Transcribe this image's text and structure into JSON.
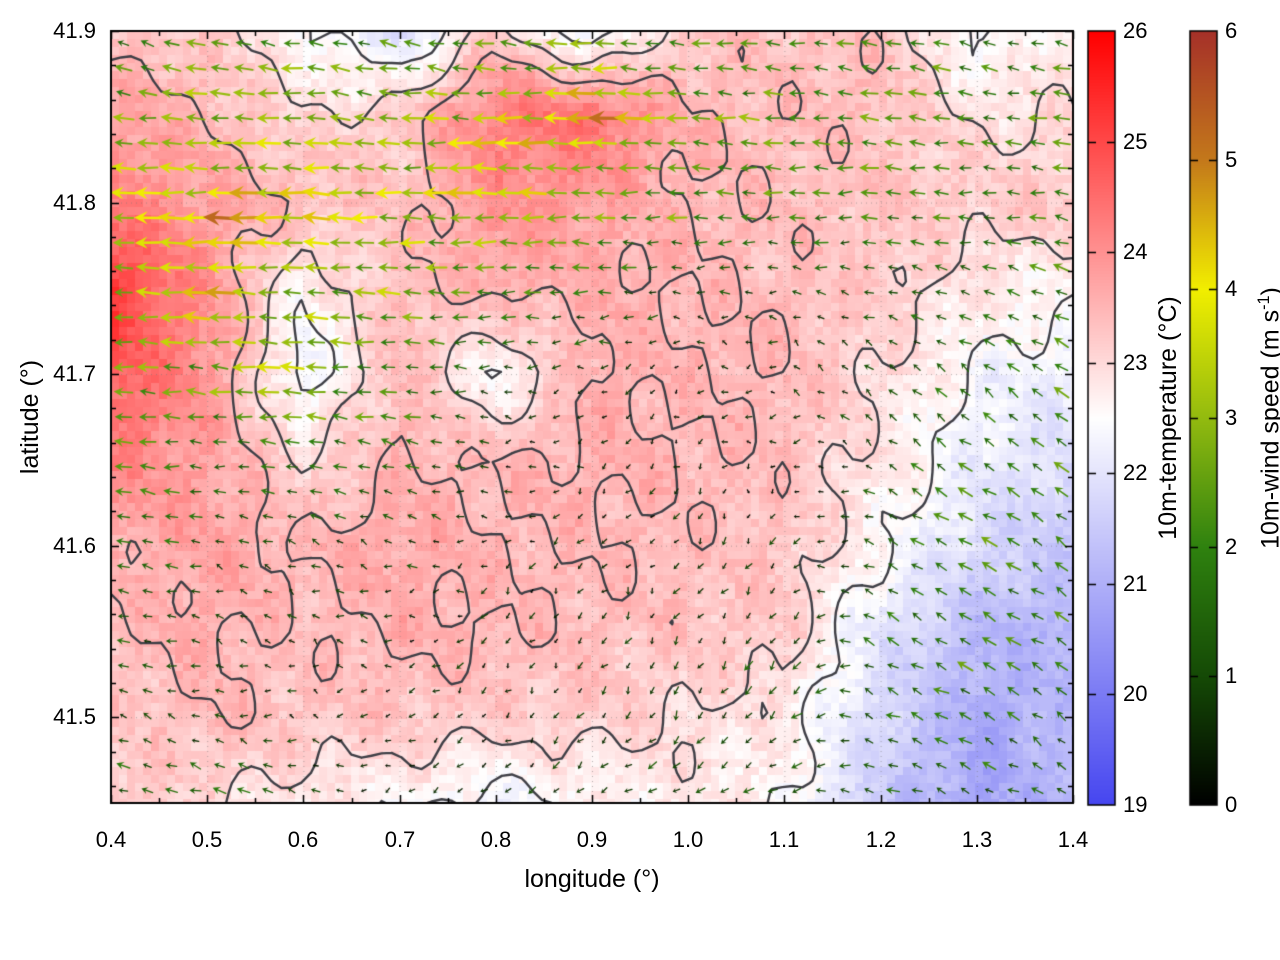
{
  "chart_data": {
    "type": "heatmap",
    "overlays": [
      "quiver",
      "contour"
    ],
    "title": "",
    "xlabel": "longitude (°)",
    "ylabel": "latitude (°)",
    "xlim": [
      0.4,
      1.4
    ],
    "ylim": [
      41.45,
      41.9
    ],
    "x_tick_labels": [
      "0.4",
      "0.5",
      "0.6",
      "0.7",
      "0.8",
      "0.9",
      "1.0",
      "1.1",
      "1.2",
      "1.3",
      "1.4"
    ],
    "y_tick_labels": [
      "41.5",
      "41.6",
      "41.7",
      "41.8",
      "41.9"
    ],
    "x_minor_step": 0.05,
    "y_minor_step": 0.02,
    "grid_style": "dotted-at-major-ticks",
    "field_grid": {
      "lon": [
        0.4,
        0.5,
        0.6,
        0.7,
        0.8,
        0.9,
        1.0,
        1.1,
        1.2,
        1.3,
        1.4
      ],
      "lat": [
        41.9,
        41.85,
        41.8,
        41.75,
        41.7,
        41.65,
        41.6,
        41.55,
        41.5,
        41.45
      ]
    },
    "temperature_c": [
      [
        23.3,
        23.2,
        22.6,
        21.9,
        23.2,
        22.1,
        23.3,
        23.3,
        23.4,
        22.4,
        22.8
      ],
      [
        23.8,
        23.5,
        23.0,
        23.2,
        24.3,
        24.5,
        23.5,
        23.4,
        23.4,
        22.9,
        23.0
      ],
      [
        24.3,
        23.8,
        23.4,
        23.3,
        24.0,
        23.8,
        23.5,
        23.4,
        23.3,
        23.2,
        23.3
      ],
      [
        25.3,
        24.0,
        22.6,
        23.4,
        23.6,
        23.6,
        23.5,
        23.4,
        23.2,
        22.8,
        22.6
      ],
      [
        24.8,
        24.0,
        22.2,
        23.5,
        22.4,
        23.6,
        23.5,
        23.5,
        23.0,
        22.4,
        22.2
      ],
      [
        24.2,
        23.8,
        23.0,
        23.5,
        23.5,
        23.6,
        23.5,
        23.4,
        22.8,
        22.2,
        21.8
      ],
      [
        23.6,
        23.8,
        23.5,
        23.7,
        23.5,
        23.5,
        23.4,
        23.3,
        22.6,
        21.8,
        21.5
      ],
      [
        23.4,
        23.6,
        23.4,
        23.6,
        23.5,
        23.4,
        23.3,
        23.2,
        22.0,
        21.2,
        21.0
      ],
      [
        23.2,
        23.5,
        23.3,
        23.3,
        23.2,
        23.2,
        23.0,
        22.8,
        21.8,
        20.9,
        21.2
      ],
      [
        23.3,
        23.0,
        22.8,
        22.6,
        22.3,
        22.6,
        22.8,
        22.6,
        21.5,
        20.8,
        21.2
      ]
    ],
    "wind_u_ms": [
      [
        -1.5,
        -2.0,
        -2.0,
        -2.0,
        -1.8,
        -2.2,
        -2.0,
        -2.0,
        -2.0,
        -1.8,
        -1.5
      ],
      [
        -2.5,
        -3.0,
        -2.5,
        -2.5,
        -3.5,
        -4.0,
        -2.5,
        -2.2,
        -2.2,
        -2.0,
        -2.0
      ],
      [
        -3.5,
        -3.8,
        -3.5,
        -3.0,
        -3.5,
        -2.5,
        -2.2,
        -2.0,
        -2.0,
        -1.8,
        -2.0
      ],
      [
        -3.0,
        -3.5,
        -3.0,
        -2.5,
        -2.0,
        -1.5,
        -1.0,
        -0.8,
        -1.0,
        -1.5,
        -1.8
      ],
      [
        -2.5,
        -2.5,
        -2.8,
        -2.0,
        -1.0,
        -0.5,
        -0.3,
        -0.5,
        -0.7,
        -1.2,
        -1.5
      ],
      [
        -2.0,
        -1.5,
        -2.0,
        -1.5,
        -0.5,
        -0.3,
        -0.2,
        -0.3,
        -0.8,
        -1.5,
        -1.8
      ],
      [
        -1.8,
        -1.0,
        -0.8,
        -0.8,
        -0.4,
        -0.3,
        -0.3,
        -0.4,
        -1.2,
        -1.8,
        -1.5
      ],
      [
        -1.2,
        -0.8,
        -0.5,
        -0.5,
        -0.3,
        -0.3,
        -0.4,
        -0.5,
        -1.5,
        -1.8,
        -1.5
      ],
      [
        -1.0,
        -0.6,
        -0.5,
        -0.3,
        -0.3,
        -0.4,
        -0.5,
        -0.8,
        -1.2,
        -1.5,
        -1.2
      ],
      [
        -1.5,
        -2.0,
        -0.8,
        -0.5,
        -0.5,
        -0.8,
        -0.8,
        -1.0,
        -1.2,
        -1.2,
        -1.0
      ]
    ],
    "wind_v_ms": [
      [
        0.8,
        0.5,
        0.3,
        0.5,
        0.3,
        0.2,
        0.3,
        0.2,
        0.3,
        0.5,
        0.3
      ],
      [
        0.3,
        0.2,
        0.2,
        0.2,
        0.0,
        0.0,
        0.2,
        0.2,
        0.2,
        0.3,
        0.3
      ],
      [
        0.0,
        0.0,
        0.2,
        0.0,
        0.0,
        0.0,
        0.0,
        0.0,
        0.0,
        0.0,
        0.3
      ],
      [
        0.3,
        0.0,
        0.3,
        0.3,
        0.0,
        0.0,
        0.0,
        0.0,
        0.3,
        0.5,
        0.8
      ],
      [
        0.0,
        0.3,
        0.0,
        0.0,
        0.0,
        -0.2,
        -0.2,
        0.3,
        0.5,
        0.8,
        1.0
      ],
      [
        0.3,
        0.0,
        0.3,
        0.5,
        0.0,
        -0.2,
        -0.3,
        -0.3,
        0.5,
        1.0,
        1.2
      ],
      [
        0.5,
        0.3,
        0.3,
        0.3,
        -0.2,
        -0.3,
        -0.4,
        -0.5,
        0.5,
        1.0,
        1.0
      ],
      [
        0.3,
        0.2,
        0.2,
        0.0,
        -0.3,
        -0.5,
        -0.5,
        -0.8,
        0.8,
        1.0,
        0.8
      ],
      [
        0.3,
        0.2,
        0.0,
        -0.3,
        -0.4,
        -0.5,
        -0.8,
        -0.8,
        0.5,
        0.8,
        0.8
      ],
      [
        0.3,
        0.5,
        0.3,
        -0.3,
        -0.5,
        -0.5,
        -0.5,
        -0.3,
        0.3,
        0.5,
        0.5
      ]
    ],
    "contour_levels_c": [
      22.5,
      23.0,
      23.5
    ],
    "contour_color": "#3f3f46",
    "quiver_grid": {
      "cols": 40,
      "rows": 31
    },
    "colorbars": [
      {
        "label": "10m-temperature (°C)",
        "min": 19,
        "max": 26,
        "tick_labels": [
          "26",
          "25",
          "24",
          "23",
          "22",
          "21",
          "20",
          "19"
        ],
        "stops": [
          {
            "value": 19,
            "color": "#4646f0"
          },
          {
            "value": 22.5,
            "color": "#ffffff"
          },
          {
            "value": 26,
            "color": "#ff0000"
          }
        ]
      },
      {
        "label": "10m-wind speed (m s⁻¹)",
        "label_pre": "10m-wind speed (m s",
        "label_sup": "-1",
        "label_post": ")",
        "min": 0,
        "max": 6,
        "tick_labels": [
          "6",
          "5",
          "4",
          "3",
          "2",
          "1",
          "0"
        ],
        "stops": [
          {
            "value": 0,
            "color": "#000000"
          },
          {
            "value": 1,
            "color": "#154a06"
          },
          {
            "value": 2,
            "color": "#2f820f"
          },
          {
            "value": 3,
            "color": "#93bb0f"
          },
          {
            "value": 4,
            "color": "#f2ef00"
          },
          {
            "value": 5,
            "color": "#c4791b"
          },
          {
            "value": 6,
            "color": "#a63129"
          }
        ]
      }
    ]
  }
}
